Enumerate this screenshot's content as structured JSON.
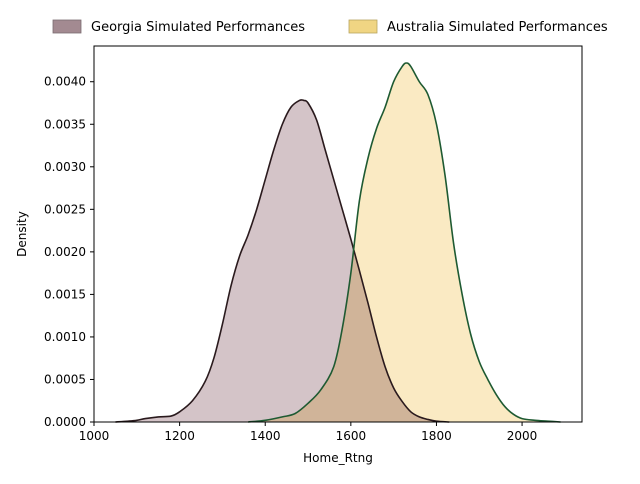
{
  "chart_data": {
    "type": "area",
    "xlabel": "Home_Rtng",
    "ylabel": "Density",
    "xlim": [
      1000,
      2140
    ],
    "ylim": [
      0,
      0.00442
    ],
    "x_ticks": [
      {
        "value": 1000,
        "label": "1000"
      },
      {
        "value": 1200,
        "label": "1200"
      },
      {
        "value": 1400,
        "label": "1400"
      },
      {
        "value": 1600,
        "label": "1600"
      },
      {
        "value": 1800,
        "label": "1800"
      },
      {
        "value": 2000,
        "label": "2000"
      }
    ],
    "y_ticks": [
      {
        "value": 0,
        "label": "0.0000"
      },
      {
        "value": 0.0005,
        "label": "0.0005"
      },
      {
        "value": 0.001,
        "label": "0.0010"
      },
      {
        "value": 0.0015,
        "label": "0.0015"
      },
      {
        "value": 0.002,
        "label": "0.0020"
      },
      {
        "value": 0.0025,
        "label": "0.0025"
      },
      {
        "value": 0.003,
        "label": "0.0030"
      },
      {
        "value": 0.0035,
        "label": "0.0035"
      },
      {
        "value": 0.004,
        "label": "0.0040"
      }
    ],
    "grid": false,
    "legend_position": "top, outside plot",
    "series": [
      {
        "name": "Georgia Simulated Performances",
        "fill_color": "#d4c4c8",
        "legend_color": "#a38a91",
        "line_color": "#2a1a1d",
        "x": [
          1050,
          1080,
          1100,
          1120,
          1150,
          1180,
          1200,
          1230,
          1260,
          1280,
          1300,
          1320,
          1340,
          1360,
          1380,
          1400,
          1420,
          1440,
          1460,
          1480,
          1490,
          1500,
          1520,
          1540,
          1560,
          1580,
          1600,
          1620,
          1640,
          1660,
          1680,
          1700,
          1720,
          1740,
          1760,
          1780,
          1800,
          1830
        ],
        "y": [
          0.0,
          1e-05,
          2e-05,
          4e-05,
          6e-05,
          7e-05,
          0.00012,
          0.00025,
          0.00048,
          0.00075,
          0.00115,
          0.0016,
          0.00195,
          0.0022,
          0.0025,
          0.00285,
          0.0032,
          0.0035,
          0.0037,
          0.00378,
          0.00378,
          0.00375,
          0.00355,
          0.0032,
          0.00285,
          0.0025,
          0.00215,
          0.00178,
          0.0014,
          0.001,
          0.00065,
          0.0004,
          0.00024,
          0.00012,
          6e-05,
          3e-05,
          1e-05,
          0.0
        ]
      },
      {
        "name": "Australia Simulated Performances",
        "fill_color": "#f9e8bd",
        "legend_color": "#f0d583",
        "line_color": "#1e5a32",
        "x": [
          1360,
          1400,
          1440,
          1470,
          1500,
          1530,
          1560,
          1580,
          1600,
          1620,
          1640,
          1660,
          1680,
          1700,
          1720,
          1730,
          1740,
          1760,
          1780,
          1800,
          1820,
          1840,
          1860,
          1880,
          1900,
          1920,
          1940,
          1960,
          1980,
          2000,
          2030,
          2060,
          2090
        ],
        "y": [
          0.0,
          2e-05,
          6e-05,
          0.0001,
          0.00022,
          0.00038,
          0.00065,
          0.0011,
          0.00175,
          0.0026,
          0.0031,
          0.00345,
          0.0037,
          0.004,
          0.00418,
          0.00422,
          0.00418,
          0.004,
          0.00385,
          0.0035,
          0.0029,
          0.0021,
          0.0015,
          0.00103,
          0.00071,
          0.0005,
          0.00032,
          0.00018,
          9e-05,
          4e-05,
          2e-05,
          1e-05,
          0.0
        ]
      }
    ]
  }
}
